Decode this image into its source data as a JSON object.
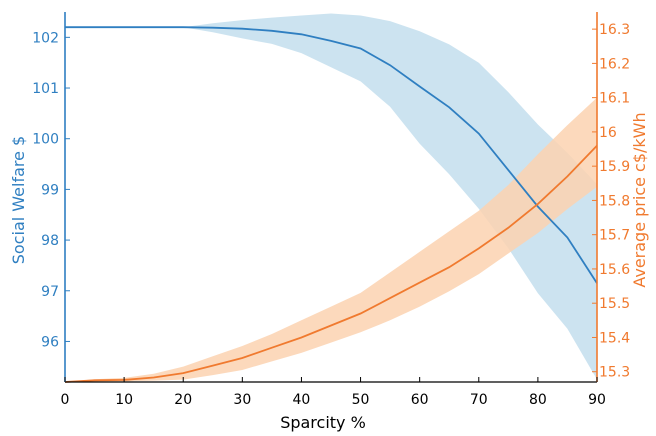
{
  "chart_data": {
    "type": "line",
    "xlabel": "Sparcity %",
    "ylabel_left": "Social Welfare $",
    "ylabel_right": "Average price c$/kWh",
    "xlim": [
      0,
      90
    ],
    "ylim_left": [
      95.2,
      102.5
    ],
    "ylim_right": [
      15.27,
      16.35
    ],
    "xticks": [
      "0",
      "10",
      "20",
      "30",
      "40",
      "50",
      "60",
      "70",
      "80",
      "90"
    ],
    "yticks_left": [
      "96",
      "97",
      "98",
      "99",
      "100",
      "101",
      "102"
    ],
    "yticks_right": [
      "15.3",
      "15.4",
      "15.5",
      "15.6",
      "15.7",
      "15.8",
      "15.9",
      "16",
      "16.1",
      "16.2",
      "16.3"
    ],
    "colors": {
      "welfare": "#2f7fc1",
      "price": "#f07a2f",
      "welfare_band": "#c6e0ee",
      "price_band": "#fcd2b0"
    },
    "series": [
      {
        "axis": "left",
        "x": [
          0,
          5,
          10,
          15,
          20,
          25,
          30,
          35,
          40,
          45,
          50,
          55,
          60,
          65,
          70,
          75,
          80,
          85,
          90
        ],
        "values": [
          102.2,
          102.2,
          102.2,
          102.2,
          102.2,
          102.19,
          102.17,
          102.13,
          102.06,
          101.93,
          101.78,
          101.45,
          101.03,
          100.62,
          100.1,
          99.38,
          98.66,
          98.05,
          97.15
        ],
        "upper": [
          102.2,
          102.2,
          102.2,
          102.2,
          102.2,
          102.28,
          102.34,
          102.39,
          102.43,
          102.47,
          102.43,
          102.32,
          102.12,
          101.86,
          101.5,
          100.92,
          100.28,
          99.72,
          99.1
        ],
        "lower": [
          102.2,
          102.2,
          102.2,
          102.2,
          102.2,
          102.1,
          101.98,
          101.87,
          101.69,
          101.41,
          101.13,
          100.63,
          99.9,
          99.3,
          98.62,
          97.84,
          96.95,
          96.25,
          95.25
        ]
      },
      {
        "axis": "right",
        "x": [
          0,
          5,
          10,
          15,
          20,
          25,
          30,
          35,
          40,
          45,
          50,
          55,
          60,
          65,
          70,
          75,
          80,
          85,
          90
        ],
        "values": [
          15.27,
          15.275,
          15.276,
          15.283,
          15.296,
          15.318,
          15.34,
          15.37,
          15.4,
          15.435,
          15.47,
          15.515,
          15.56,
          15.605,
          15.66,
          15.72,
          15.79,
          15.87,
          15.96
        ],
        "upper": [
          15.27,
          15.278,
          15.282,
          15.294,
          15.315,
          15.345,
          15.375,
          15.41,
          15.45,
          15.49,
          15.53,
          15.59,
          15.65,
          15.71,
          15.77,
          15.845,
          15.935,
          16.02,
          16.1
        ],
        "lower": [
          15.27,
          15.271,
          15.272,
          15.274,
          15.277,
          15.29,
          15.305,
          15.33,
          15.355,
          15.385,
          15.415,
          15.45,
          15.49,
          15.535,
          15.585,
          15.645,
          15.705,
          15.775,
          15.84
        ]
      }
    ]
  }
}
